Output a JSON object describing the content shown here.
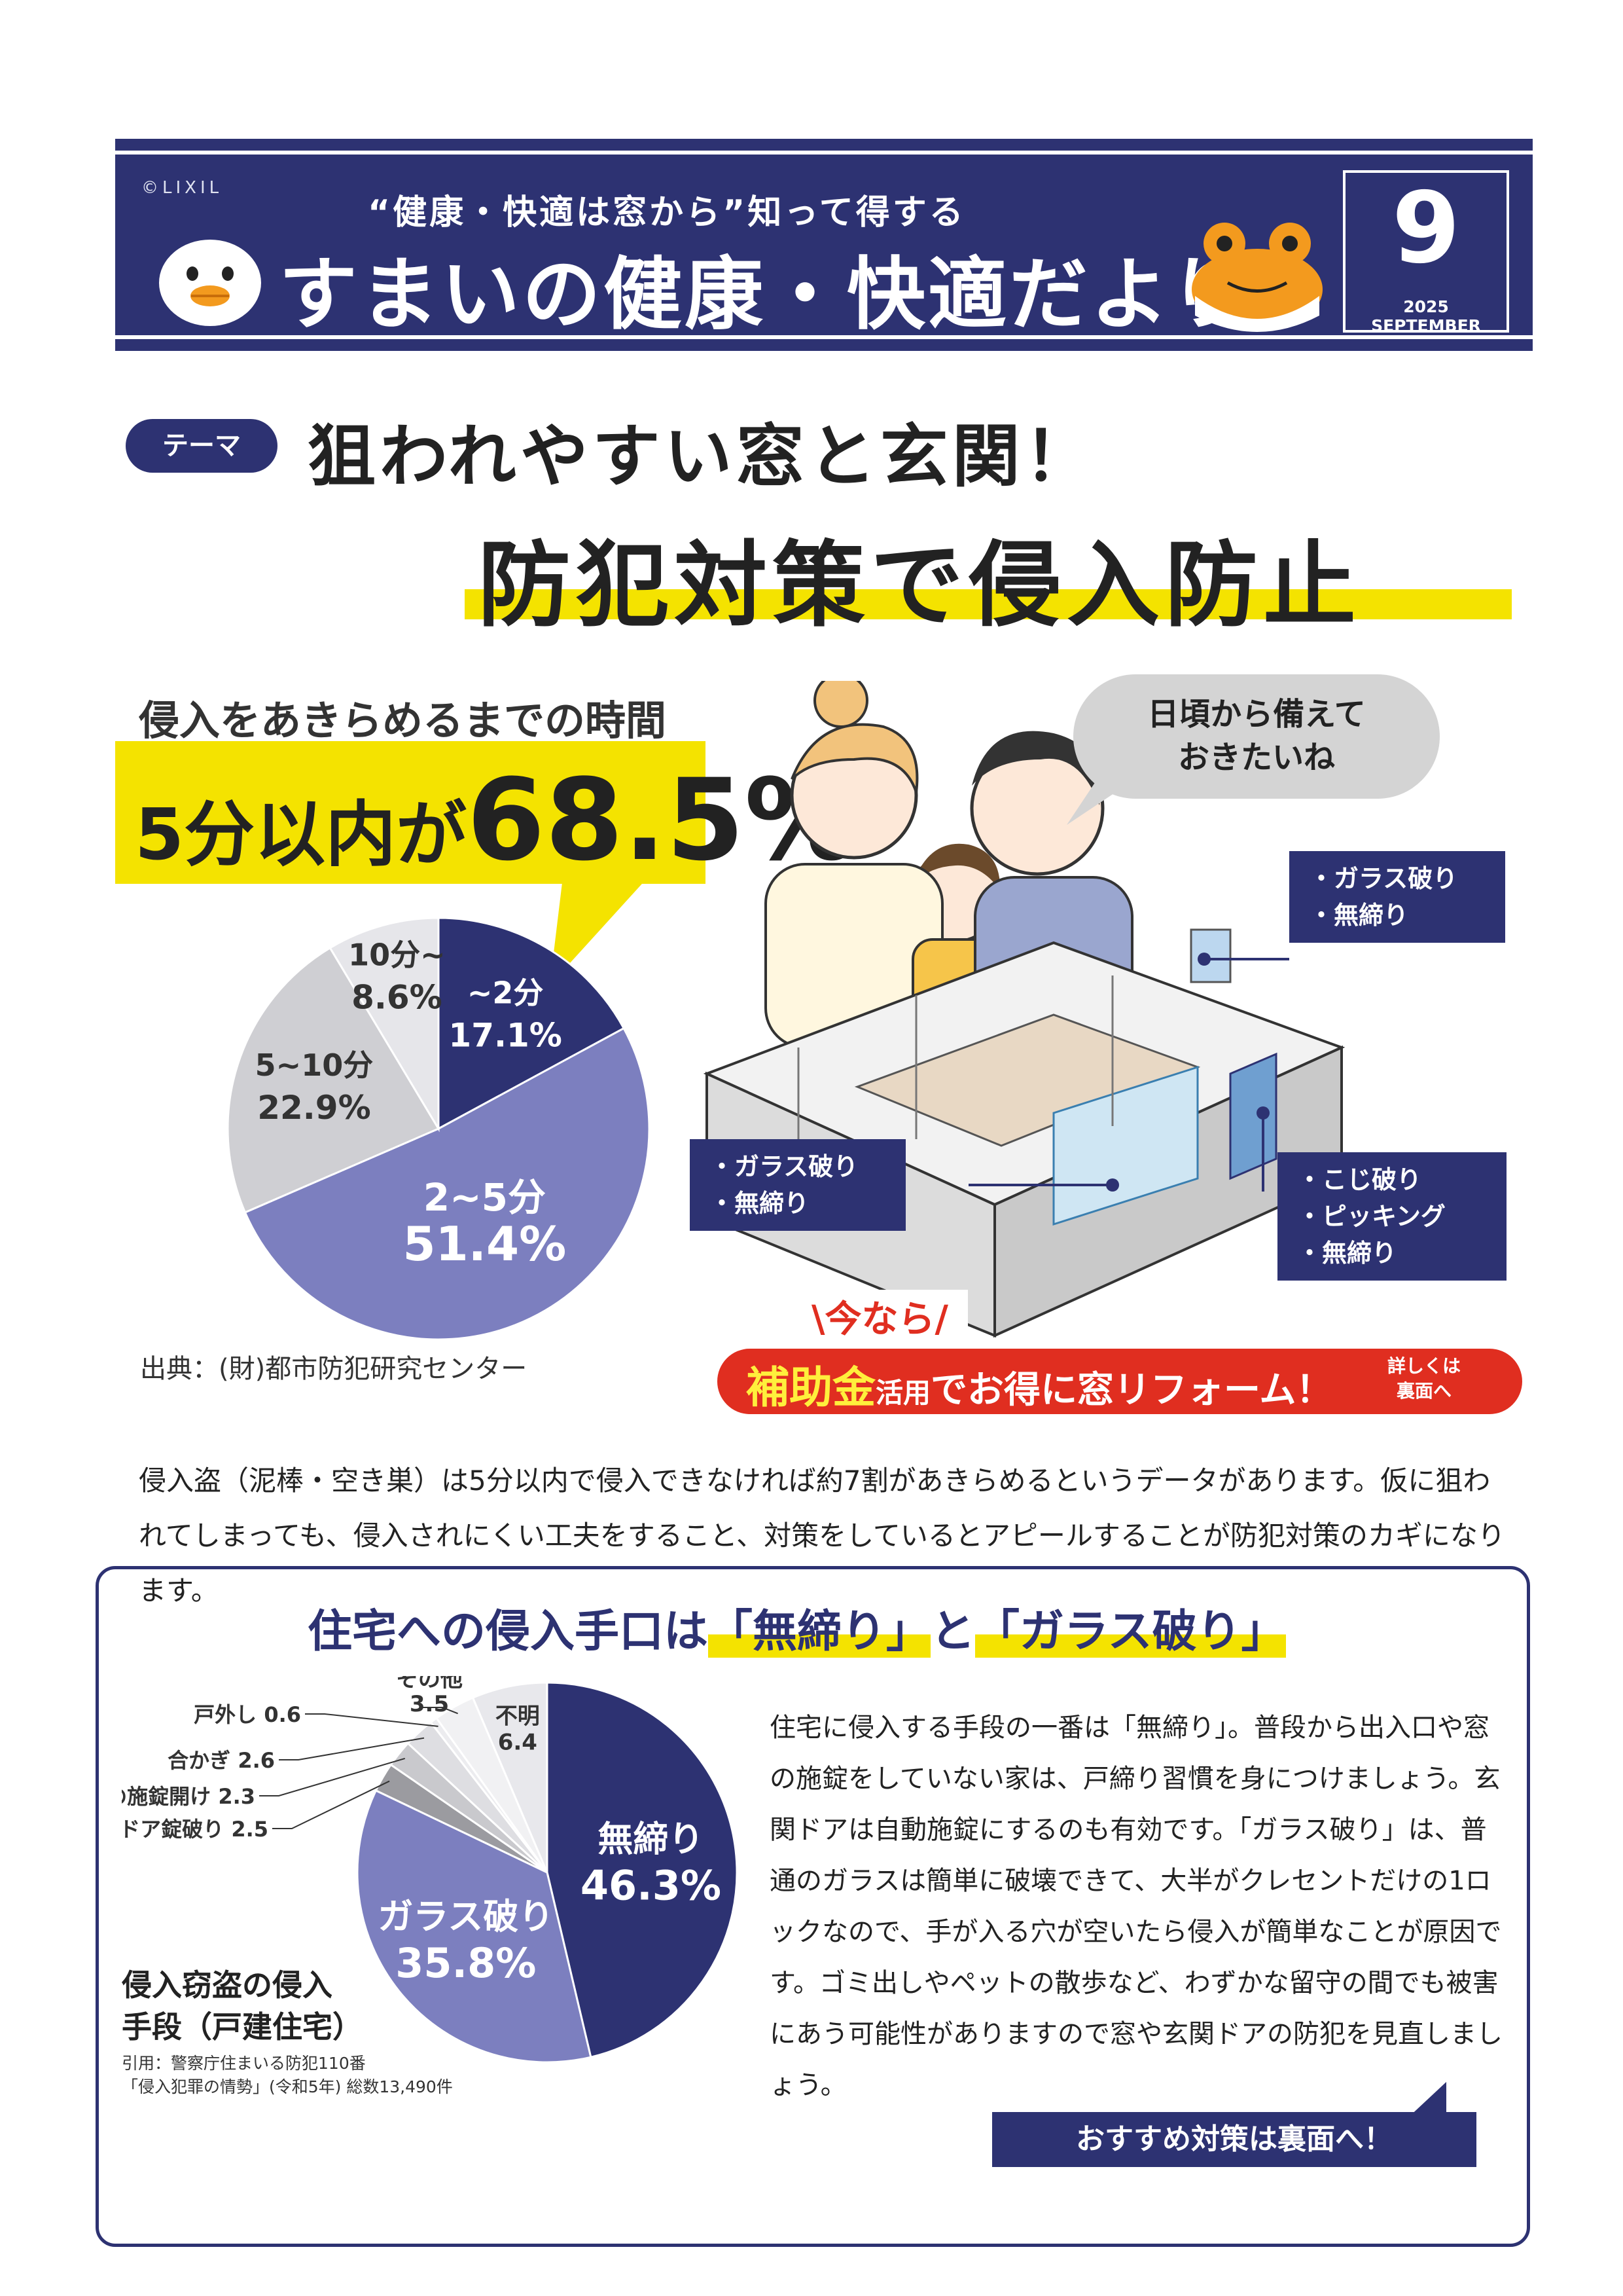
{
  "header": {
    "brand": "©LIXIL",
    "subtitle": "“健康・快適は窓から”知って得する",
    "title": "すまいの健康・快適だより",
    "month": "9",
    "date": "2025 SEPTEMBER"
  },
  "theme": {
    "badge": "テーマ",
    "line1": "狙われやすい窓と玄関！",
    "line2": "防犯対策で侵入防止"
  },
  "time_section": {
    "heading": "侵入をあきらめるまでの時間",
    "callout_prefix": "5分以内が",
    "callout_value": "68.5%",
    "source": "出典：(財)都市防犯研究センター"
  },
  "illustration": {
    "speech": [
      "日頃から備えて",
      "おきたいね"
    ],
    "callout_window_top": [
      "・ガラス破り",
      "・無締り"
    ],
    "callout_window_left": [
      "・ガラス破り",
      "・無締り"
    ],
    "callout_door": [
      "・こじ破り",
      "・ピッキング",
      "・無締り"
    ]
  },
  "subsidy": {
    "top": "\\今なら/",
    "bold": "補助金",
    "middle": "活用",
    "rest": "でお得に窓リフォーム！",
    "small1": "詳しくは",
    "small2": "裏面へ"
  },
  "intro_paragraph": "侵入盗（泥棒・空き巣）は5分以内で侵入できなければ約7割があきらめるというデータがあります。仮に狙われてしまっても、侵入されにくい工夫をすること、対策をしているとアピールすることが防犯対策のカギになります。",
  "methods": {
    "title_pre": "住宅への侵入手口は",
    "title_a": "「無締り」",
    "title_mid": "と",
    "title_b": "「ガラス破り」",
    "paragraph": "住宅に侵入する手段の一番は「無締り」。普段から出入口や窓の施錠をしていない家は、戸締り習慣を身につけましょう。玄関ドアは自動施錠にするのも有効です。「ガラス破り」は、普通のガラスは簡単に破壊できて、大半がクレセントだけの1ロックなので、手が入る穴が空いたら侵入が簡単なことが原因です。ゴミ出しやペットの散歩など、わずかな留守の間でも被害にあう可能性がありますので窓や玄関ドアの防犯を見直しましょう。",
    "chart_title_1": "侵入窃盗の侵入",
    "chart_title_2": "手段（戸建住宅）",
    "source_1": "引用：警察庁住まいる防犯110番",
    "source_2": "「侵入犯罪の情勢」(令和5年) 総数13,490件",
    "next": "おすすめ対策は裏面へ！"
  },
  "chart_data": [
    {
      "type": "pie",
      "title": "侵入をあきらめるまでの時間",
      "categories": [
        "~2分",
        "2~5分",
        "5~10分",
        "10分~"
      ],
      "values": [
        17.1,
        51.4,
        22.9,
        8.6
      ],
      "labels": [
        "17.1%",
        "51.4%",
        "22.9%",
        "8.6%"
      ],
      "colors": [
        "#2d3272",
        "#7c7fbf",
        "#cfcfd3",
        "#e6e6ea"
      ]
    },
    {
      "type": "pie",
      "title": "侵入窃盗の侵入手段（戸建住宅）",
      "categories": [
        "無締り",
        "ガラス破り",
        "ドア錠破り",
        "その他の施錠開け",
        "合かぎ",
        "戸外し",
        "その他",
        "不明"
      ],
      "values": [
        46.3,
        35.8,
        2.5,
        2.3,
        2.6,
        0.6,
        3.5,
        6.4
      ],
      "labels": [
        "46.3%",
        "35.8%",
        "2.5",
        "2.3",
        "2.6",
        "0.6",
        "3.5",
        "6.4"
      ],
      "colors": [
        "#2d3272",
        "#7c7fbf",
        "#9b9ba0",
        "#c9c9cd",
        "#dedee2",
        "#ececef",
        "#f1f1f3",
        "#e8e8ec"
      ]
    }
  ]
}
